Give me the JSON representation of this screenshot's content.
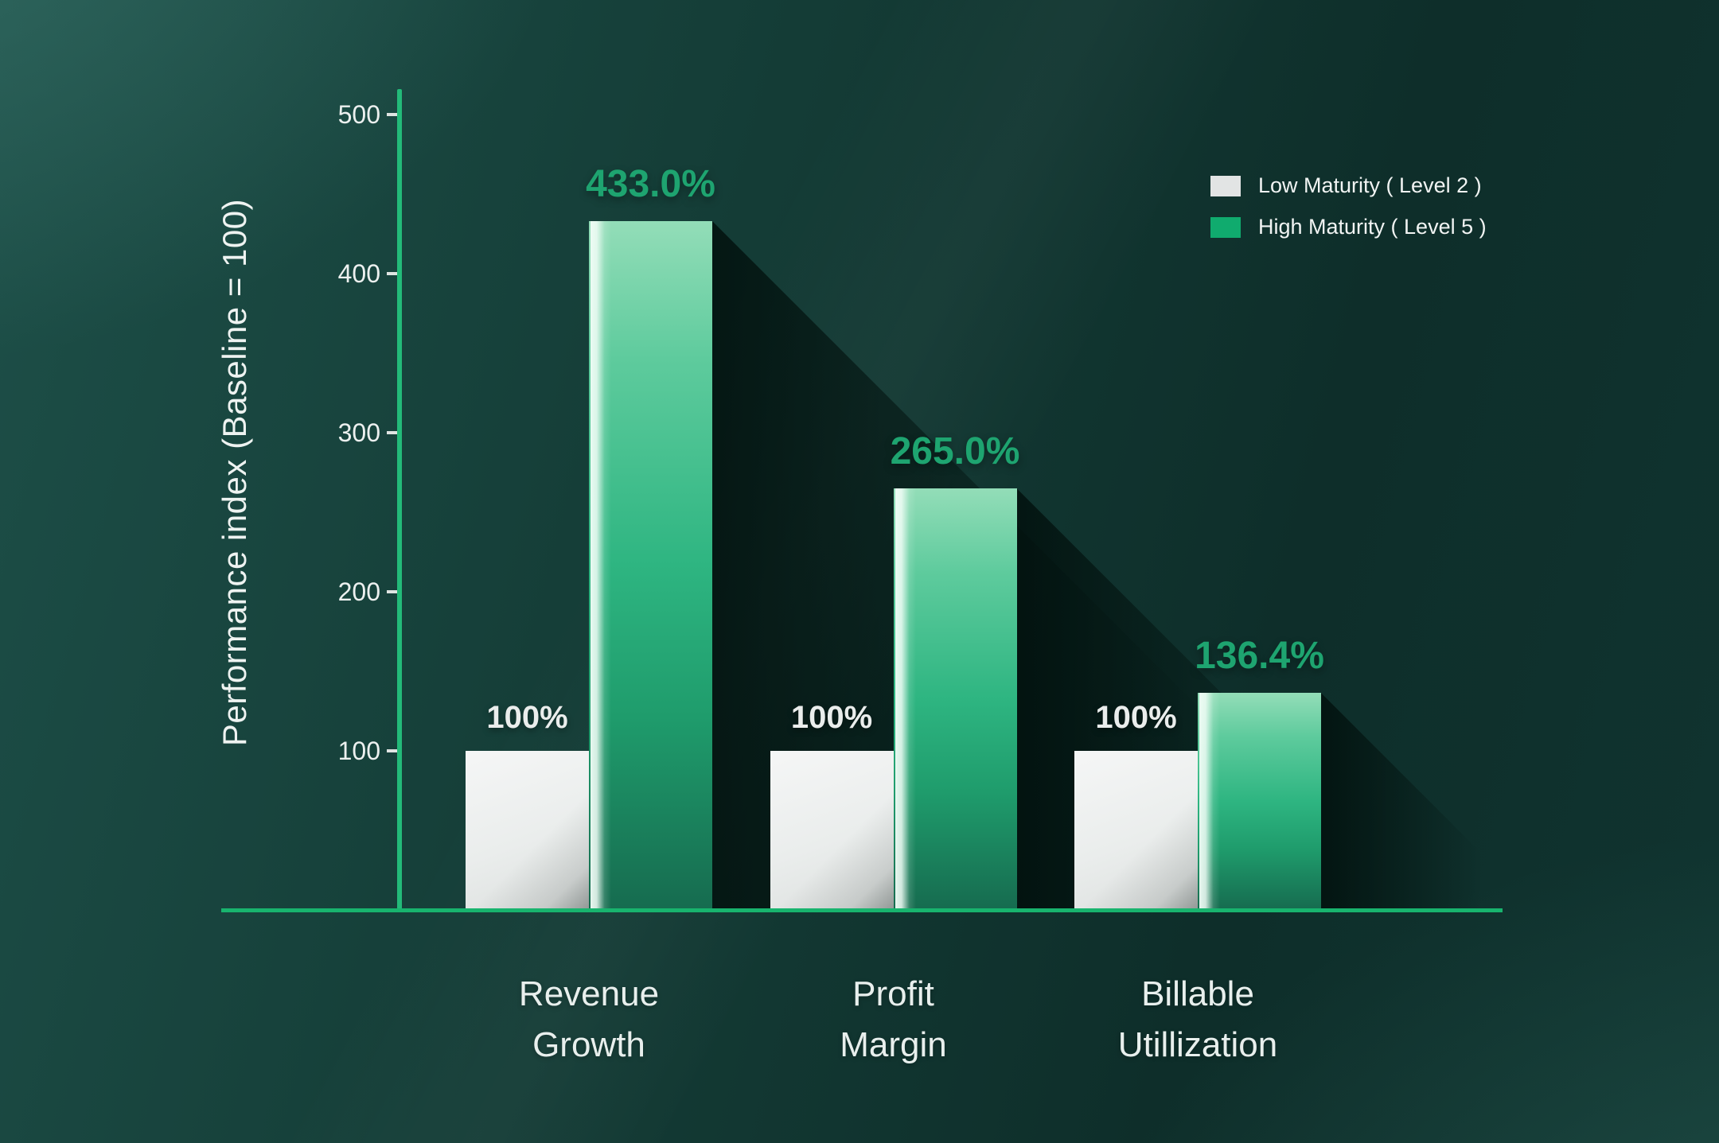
{
  "chart_data": {
    "type": "bar",
    "title": "",
    "ylabel": "Performance index (Baseline = 100)",
    "xlabel": "",
    "categories": [
      "Revenue\nGrowth",
      "Profit\nMargin",
      "Billable\nUtillization"
    ],
    "series": [
      {
        "name": "Low Maturity ( Level 2 )",
        "values": [
          100,
          100,
          100
        ],
        "labels": [
          "100%",
          "100%",
          "100%"
        ],
        "color": "#e2e4e4"
      },
      {
        "name": "High Maturity ( Level 5 )",
        "values": [
          433.0,
          265.0,
          136.4
        ],
        "labels": [
          "433.0%",
          "265.0%",
          "136.4%"
        ],
        "color": "#10ab6e"
      }
    ],
    "yticks": [
      100,
      200,
      300,
      400,
      500
    ],
    "ylim": [
      0,
      520
    ],
    "grid": false,
    "legend_position": "top-right"
  },
  "colors": {
    "axis_line": "#1db56f",
    "value_label_green": "#1ea470",
    "bar_green_top": "#93ddb8",
    "bar_green_bottom": "#166b4f",
    "bar_gray": "#e7eae9",
    "text_light": "#eef2f1",
    "background_light": "#1d4f48",
    "background_dark": "#0e2e2a"
  }
}
